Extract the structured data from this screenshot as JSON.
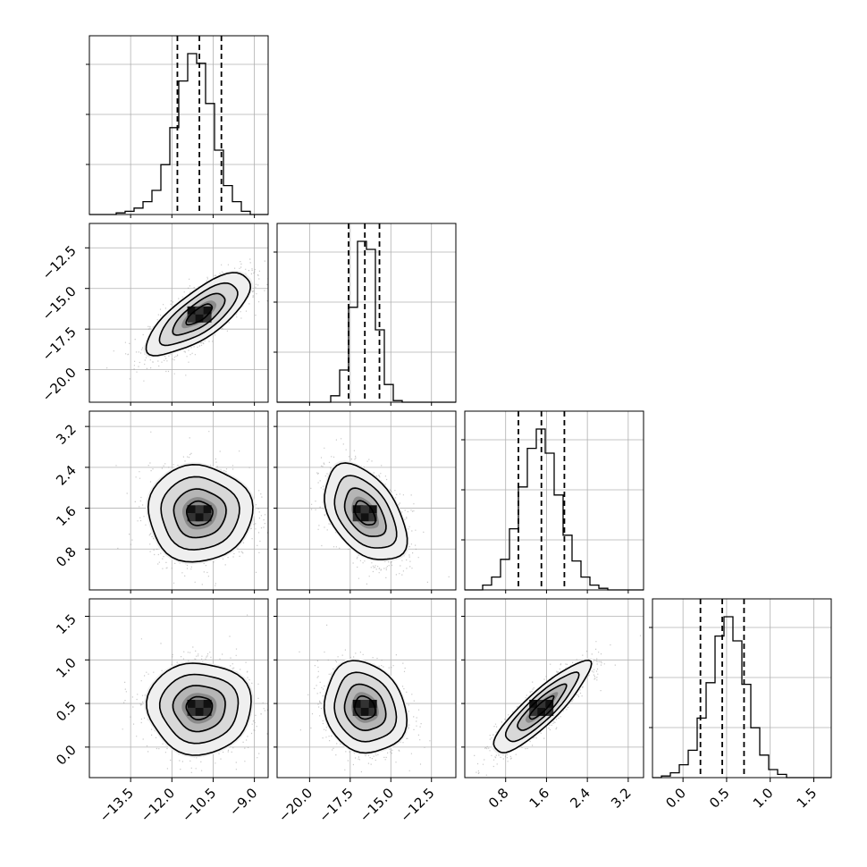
{
  "chart_data": {
    "type": "corner",
    "n_params": 4,
    "colors": {
      "frame": "#000000",
      "grid": "#b0b0b0",
      "points": "#9a9a9a",
      "contour": "#000000",
      "quantile_line": "#000000"
    },
    "grid": true,
    "quantiles": [
      0.16,
      0.5,
      0.84
    ],
    "params": [
      {
        "name": "",
        "range": [
          -15.0,
          -8.5
        ],
        "mean": -11.0,
        "sd": 0.9,
        "median": -11.0,
        "q16": -11.8,
        "q84": -10.2,
        "ticks": [
          -13.5,
          -12.0,
          -10.5,
          -9.0
        ],
        "tick_labels": [
          "−13.5",
          "−12.0",
          "−10.5",
          "−9.0"
        ]
      },
      {
        "name": "",
        "range": [
          -22.0,
          -11.0
        ],
        "mean": -16.6,
        "sd": 1.2,
        "median": -16.6,
        "q16": -17.6,
        "q84": -15.7,
        "ticks": [
          -20.0,
          -17.5,
          -15.0,
          -12.5
        ],
        "tick_labels": [
          "−20.0",
          "−17.5",
          "−15.0",
          "−12.5"
        ]
      },
      {
        "name": "",
        "range": [
          0.0,
          3.5
        ],
        "mean": 1.5,
        "sd": 0.45,
        "median": 1.5,
        "q16": 1.05,
        "q84": 1.95,
        "ticks": [
          0.8,
          1.6,
          2.4,
          3.2
        ],
        "tick_labels": [
          "0.8",
          "1.6",
          "2.4",
          "3.2"
        ]
      },
      {
        "name": "",
        "range": [
          -0.35,
          1.7
        ],
        "mean": 0.45,
        "sd": 0.25,
        "median": 0.45,
        "q16": 0.2,
        "q84": 0.7,
        "ticks": [
          0.0,
          0.5,
          1.0,
          1.5
        ],
        "tick_labels": [
          "0.0",
          "0.5",
          "1.0",
          "1.5"
        ]
      }
    ],
    "histogram_bins": 20,
    "histograms": [
      {
        "param": 0,
        "counts": [
          0,
          0,
          0,
          1,
          2,
          4,
          8,
          15,
          31,
          54,
          83,
          100,
          94,
          69,
          40,
          18,
          8,
          2,
          0,
          0
        ]
      },
      {
        "param": 1,
        "counts": [
          0,
          0,
          0,
          0,
          0,
          0,
          4,
          20,
          59,
          100,
          95,
          45,
          11,
          1,
          0,
          0,
          0,
          0,
          0,
          0
        ]
      },
      {
        "param": 2,
        "counts": [
          0,
          0,
          3,
          8,
          19,
          38,
          64,
          88,
          100,
          85,
          59,
          34,
          18,
          8,
          3,
          1,
          0,
          0,
          0,
          0
        ]
      },
      {
        "param": 3,
        "counts": [
          0,
          1,
          3,
          8,
          17,
          37,
          59,
          88,
          100,
          85,
          58,
          31,
          14,
          5,
          2,
          0,
          0,
          0,
          0,
          0
        ]
      }
    ],
    "pair_correlations": [
      {
        "x": 0,
        "y": 1,
        "rho": 0.75
      },
      {
        "x": 0,
        "y": 2,
        "rho": 0.0
      },
      {
        "x": 1,
        "y": 2,
        "rho": -0.45
      },
      {
        "x": 0,
        "y": 3,
        "rho": 0.0
      },
      {
        "x": 1,
        "y": 3,
        "rho": -0.15
      },
      {
        "x": 2,
        "y": 3,
        "rho": 0.88
      }
    ],
    "contour_levels_sigma": [
      0.5,
      1.0,
      1.5,
      2.0
    ]
  }
}
